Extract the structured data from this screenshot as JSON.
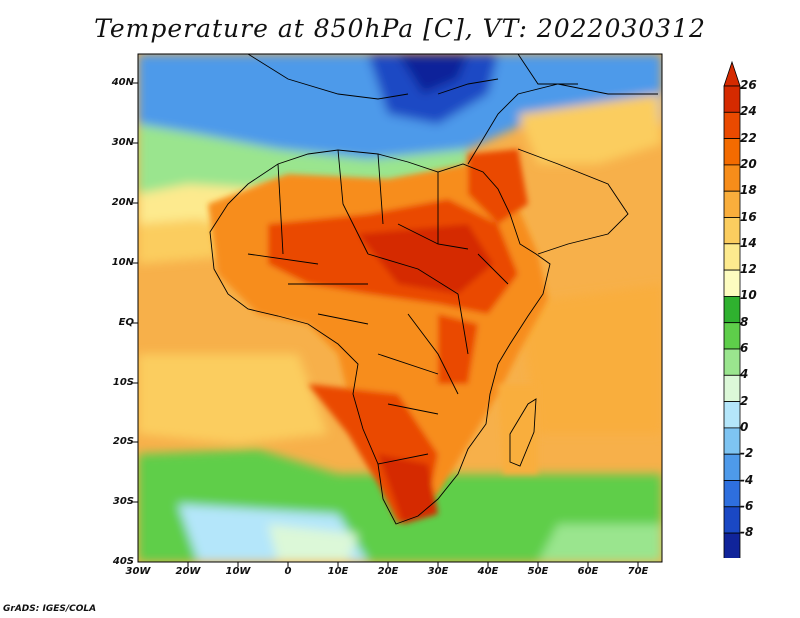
{
  "title": "Temperature at 850hPa [C], VT: 2022030312",
  "credit": "GrADS: IGES/COLA",
  "map": {
    "projection": "lat-lon",
    "lon_range": [
      -30,
      75
    ],
    "lat_range": [
      -40,
      45
    ],
    "lat_ticks": [
      "40N",
      "30N",
      "20N",
      "10N",
      "EQ",
      "10S",
      "20S",
      "30S",
      "40S"
    ],
    "lon_ticks": [
      "30W",
      "20W",
      "10W",
      "0",
      "10E",
      "20E",
      "30E",
      "40E",
      "50E",
      "60E",
      "70E"
    ],
    "field": "850hPa temperature",
    "units": "C"
  },
  "colorbar": {
    "labels": [
      "26",
      "24",
      "22",
      "20",
      "18",
      "16",
      "14",
      "12",
      "10",
      "8",
      "6",
      "4",
      "2",
      "0",
      "-2",
      "-4",
      "-6",
      "-8"
    ],
    "colors": [
      "#d52a00",
      "#ea4a00",
      "#f36b00",
      "#f78d1a",
      "#f9ae3c",
      "#fbcd5f",
      "#fdea8e",
      "#fdfcc0",
      "#2fb12f",
      "#5ece4a",
      "#9ae58e",
      "#dcf8d8",
      "#b4e6fa",
      "#7ec4f2",
      "#4e9aea",
      "#2e6fde",
      "#1a48c4",
      "#10249a",
      "#08126a"
    ],
    "end_top": "#d52a00",
    "end_bottom": "#c9d8fb"
  }
}
